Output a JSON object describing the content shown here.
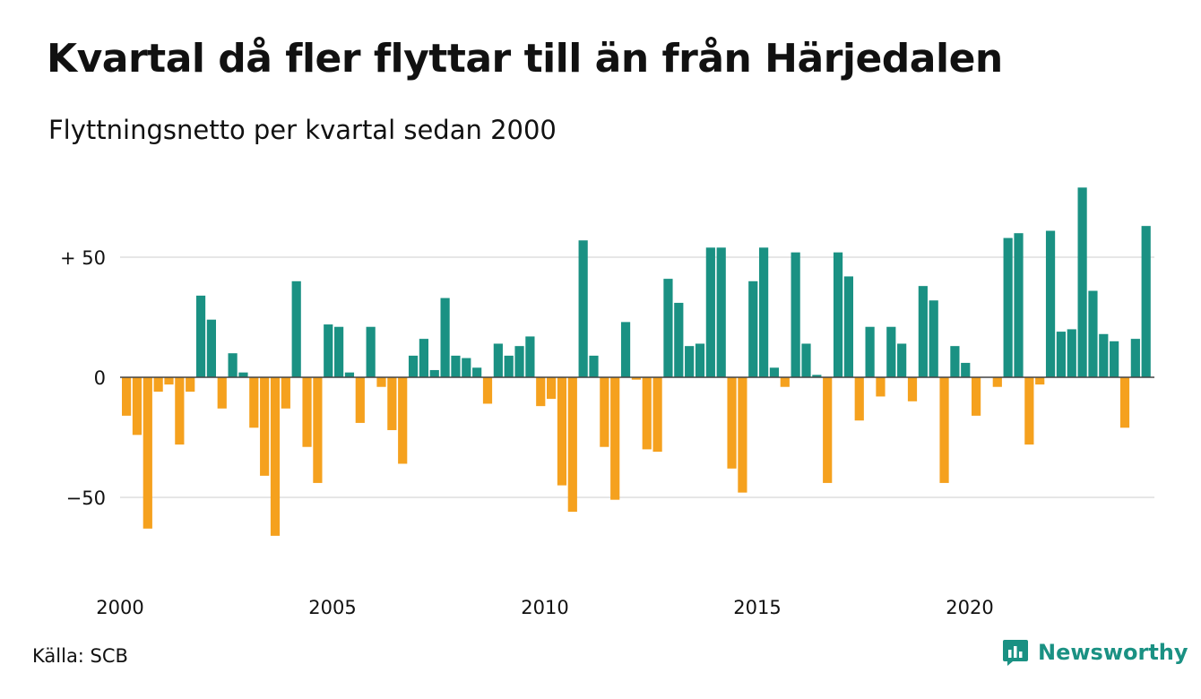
{
  "title": "Kvartal då fler flyttar till än från Härjedalen",
  "subtitle": "Flyttningsnetto per kvartal sedan 2000",
  "source": "Källa: SCB",
  "brand": "Newsworthy",
  "colors": {
    "positive": "#1a9183",
    "negative": "#f5a11e",
    "grid": "#dddddd",
    "zero": "#444444"
  },
  "chart_data": {
    "type": "bar",
    "title": "Kvartal då fler flyttar till än från Härjedalen",
    "subtitle": "Flyttningsnetto per kvartal sedan 2000",
    "x_start": "2000 Q1",
    "x_ticks": [
      "2000",
      "2005",
      "2010",
      "2015",
      "2020"
    ],
    "y_ticks": [
      {
        "value": 50,
        "label": "+ 50"
      },
      {
        "value": 0,
        "label": "0"
      },
      {
        "value": -50,
        "label": "−50"
      }
    ],
    "ylim": [
      -80,
      80
    ],
    "grid": true,
    "values": [
      -16,
      -24,
      -63,
      -6,
      -3,
      -28,
      -6,
      34,
      24,
      -13,
      10,
      2,
      -21,
      -41,
      -66,
      -13,
      40,
      -29,
      -44,
      22,
      21,
      2,
      -19,
      21,
      -4,
      -22,
      -36,
      9,
      16,
      3,
      33,
      9,
      8,
      4,
      -11,
      14,
      9,
      13,
      17,
      -12,
      -9,
      -45,
      -56,
      57,
      9,
      -29,
      -51,
      23,
      -1,
      -30,
      -31,
      41,
      31,
      13,
      14,
      54,
      54,
      -38,
      -48,
      40,
      54,
      4,
      -4,
      52,
      14,
      1,
      -44,
      52,
      42,
      -18,
      21,
      -8,
      21,
      14,
      -10,
      38,
      32,
      -44,
      13,
      6,
      -16,
      0,
      -4,
      58,
      60,
      -28,
      -3,
      61,
      19,
      20,
      79,
      36,
      18,
      15,
      -21,
      16,
      63
    ]
  }
}
